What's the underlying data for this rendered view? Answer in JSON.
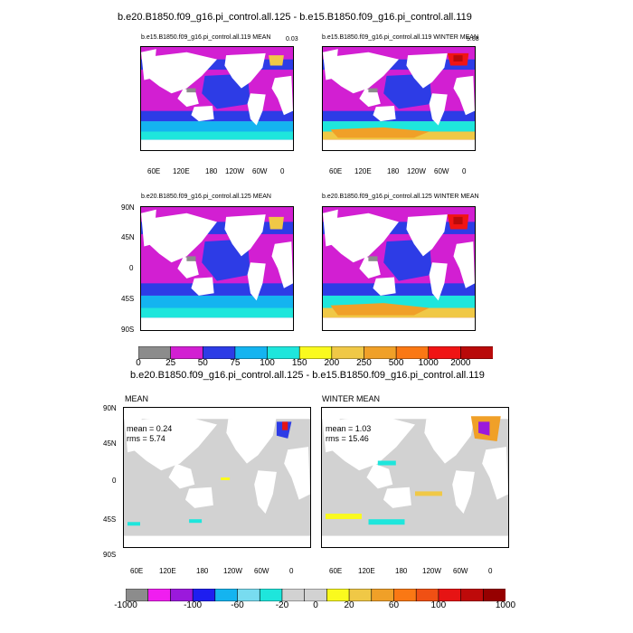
{
  "figure": {
    "top_title": "b.e20.B1850.f09_g16.pi_control.all.125 - b.e15.B1850.f09_g16.pi_control.all.119",
    "diff_title": "b.e20.B1850.f09_g16.pi_control.all.125 - b.e15.B1850.f09_g16.pi_control.all.119",
    "panels": [
      {
        "id": "p1",
        "title": "b.e15.B1850.f09_g16.pi_control.all.119 MEAN",
        "corner": "0.03"
      },
      {
        "id": "p2",
        "title": "b.e15.B1850.f09_g16.pi_control.all.119 WINTER MEAN",
        "corner": "5.08"
      },
      {
        "id": "p3",
        "title": "b.e20.B1850.f09_g16.pi_control.all.125 MEAN"
      },
      {
        "id": "p4",
        "title": "b.e20.B1850.f09_g16.pi_control.all.125 WINTER MEAN"
      },
      {
        "id": "p5",
        "title": "MEAN",
        "stats": [
          "mean = 0.24",
          "rms = 5.74"
        ]
      },
      {
        "id": "p6",
        "title": "WINTER MEAN",
        "stats": [
          "mean = 1.03",
          "rms = 15.46"
        ]
      }
    ],
    "lon_ticks": [
      "60E",
      "120E",
      "180",
      "120W",
      "60W",
      "0"
    ],
    "lat_ticks": [
      "90N",
      "45N",
      "0",
      "45S",
      "90S"
    ],
    "colorbar1": {
      "labels": [
        "0",
        "25",
        "50",
        "75",
        "100",
        "150",
        "200",
        "250",
        "500",
        "1000",
        "2000"
      ],
      "colors": [
        "#8c8c8c",
        "#d21fd2",
        "#2d3ce6",
        "#14b4f0",
        "#1ee6dc",
        "#fafa1e",
        "#f0c846",
        "#f0a028",
        "#fa7814",
        "#f01414",
        "#b90a0a"
      ]
    },
    "colorbar2": {
      "labels": [
        "-1000",
        "-100",
        "-60",
        "-20",
        "0",
        "20",
        "60",
        "100",
        "1000"
      ],
      "colors": [
        "#8c8c8c",
        "#f01ef0",
        "#9b19dc",
        "#1e1ef0",
        "#14b4f0",
        "#78dcf0",
        "#1ee6dc",
        "#d2d2d2",
        "#d2d2d2",
        "#fafa1e",
        "#f0c846",
        "#f0a028",
        "#fa7814",
        "#f05014",
        "#e61414",
        "#be0a0a",
        "#960000"
      ]
    }
  }
}
